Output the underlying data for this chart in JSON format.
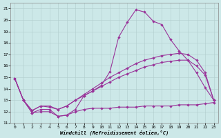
{
  "background_color": "#cce8e8",
  "grid_color": "#b0cccc",
  "line_color": "#993399",
  "xlabel": "Windchill (Refroidissement éolien,°C)",
  "xlim_min": -0.5,
  "xlim_max": 23.5,
  "ylim_min": 11,
  "ylim_max": 21.5,
  "xticks": [
    0,
    1,
    2,
    3,
    4,
    5,
    6,
    7,
    8,
    9,
    10,
    11,
    12,
    13,
    14,
    15,
    16,
    17,
    18,
    19,
    20,
    21,
    22,
    23
  ],
  "yticks": [
    11,
    12,
    13,
    14,
    15,
    16,
    17,
    18,
    19,
    20,
    21
  ],
  "curve_main_x": [
    0,
    1,
    2,
    3,
    4,
    5,
    6,
    7,
    8,
    9,
    10,
    11,
    12,
    13,
    14,
    15,
    16,
    17,
    18,
    19,
    20,
    21,
    22,
    23
  ],
  "curve_main_y": [
    14.9,
    13.0,
    11.9,
    12.2,
    12.2,
    11.6,
    11.7,
    12.2,
    13.4,
    13.8,
    14.3,
    15.5,
    18.5,
    19.8,
    20.9,
    20.7,
    19.9,
    19.6,
    18.3,
    17.3,
    16.5,
    15.4,
    14.1,
    13.0
  ],
  "curve_upper_diag_x": [
    0,
    1,
    2,
    3,
    4,
    5,
    6,
    7,
    8,
    9,
    10,
    11,
    12,
    13,
    14,
    15,
    16,
    17,
    18,
    19,
    20,
    21,
    22,
    23
  ],
  "curve_upper_diag_y": [
    14.9,
    13.0,
    12.1,
    12.5,
    12.5,
    12.2,
    12.5,
    13.0,
    13.5,
    14.0,
    14.5,
    15.0,
    15.4,
    15.8,
    16.2,
    16.5,
    16.7,
    16.9,
    17.0,
    17.1,
    17.0,
    16.5,
    15.4,
    13.0
  ],
  "curve_lower_diag_x": [
    0,
    1,
    2,
    3,
    4,
    5,
    6,
    7,
    8,
    9,
    10,
    11,
    12,
    13,
    14,
    15,
    16,
    17,
    18,
    19,
    20,
    21,
    22,
    23
  ],
  "curve_lower_diag_y": [
    14.9,
    13.0,
    12.1,
    12.5,
    12.4,
    12.2,
    12.5,
    13.0,
    13.4,
    13.8,
    14.2,
    14.6,
    15.0,
    15.3,
    15.6,
    15.9,
    16.1,
    16.3,
    16.4,
    16.5,
    16.5,
    16.0,
    15.2,
    13.0
  ],
  "curve_flat_x": [
    0,
    1,
    2,
    3,
    4,
    5,
    6,
    7,
    8,
    9,
    10,
    11,
    12,
    13,
    14,
    15,
    16,
    17,
    18,
    19,
    20,
    21,
    22,
    23
  ],
  "curve_flat_y": [
    14.9,
    13.0,
    11.9,
    12.0,
    12.0,
    11.6,
    11.7,
    12.0,
    12.2,
    12.3,
    12.3,
    12.3,
    12.4,
    12.4,
    12.4,
    12.5,
    12.5,
    12.5,
    12.5,
    12.6,
    12.6,
    12.6,
    12.7,
    12.8
  ]
}
